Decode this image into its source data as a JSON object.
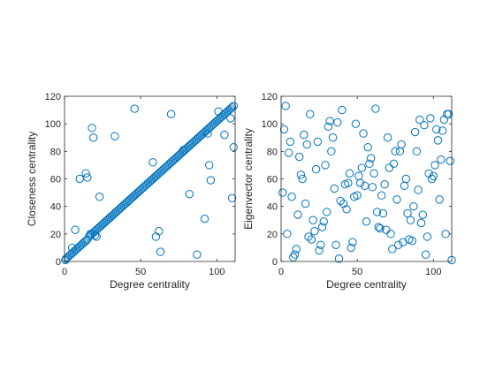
{
  "marker_color": "#0072BD",
  "axis_color": "#262626",
  "chart_data": [
    {
      "type": "scatter",
      "title": "",
      "xlabel": "Degree centrality",
      "ylabel": "Closeness centrality",
      "xlim": [
        0,
        112
      ],
      "ylim": [
        0,
        120
      ],
      "xticks": [
        0,
        50,
        100
      ],
      "yticks": [
        0,
        20,
        40,
        60,
        80,
        100,
        120
      ],
      "grid": false,
      "legend": "none",
      "series": [
        {
          "x": [
            0.5,
            1,
            2,
            3,
            4,
            5,
            6,
            7,
            8,
            9,
            10,
            11,
            12,
            13,
            14,
            15,
            16,
            17,
            18,
            19,
            20,
            21,
            22,
            23,
            24,
            25,
            26,
            27,
            28,
            29,
            30,
            31,
            32,
            33,
            34,
            35,
            36,
            37,
            38,
            39,
            40,
            41,
            42,
            43,
            44,
            45,
            46,
            47,
            48,
            49,
            50,
            51,
            52,
            53,
            54,
            55,
            56,
            57,
            58,
            59,
            60,
            61,
            62,
            63,
            64,
            65,
            66,
            67,
            68,
            69,
            70,
            71,
            72,
            73,
            74,
            75,
            76,
            77,
            78,
            79,
            80,
            81,
            82,
            83,
            84,
            85,
            86,
            87,
            88,
            89,
            90,
            91,
            92,
            93,
            94,
            95,
            96,
            97,
            98,
            99,
            100,
            101,
            102,
            103,
            104,
            105,
            106,
            107,
            108,
            109,
            110,
            111,
            5,
            7,
            10,
            14,
            15,
            17,
            18,
            19,
            20,
            21,
            23,
            33,
            46,
            58,
            60,
            62,
            63,
            70,
            78,
            82,
            87,
            92,
            94,
            95,
            96,
            101,
            105,
            109,
            110,
            111
          ],
          "y": [
            1,
            2,
            3,
            4,
            5,
            6,
            7,
            8,
            9,
            10,
            11,
            12,
            13,
            14,
            15,
            16,
            18,
            19,
            20,
            21,
            22,
            23,
            24,
            25,
            26,
            27,
            28,
            29,
            30,
            31,
            32,
            33,
            34,
            35,
            36,
            37,
            38,
            39,
            40,
            41,
            42,
            43,
            44,
            45,
            46,
            47,
            48,
            49,
            50,
            51,
            52,
            53,
            54,
            55,
            56,
            57,
            58,
            59,
            60,
            61,
            62,
            63,
            64,
            65,
            66,
            67,
            68,
            69,
            70,
            71,
            72,
            73,
            74,
            75,
            76,
            77,
            78,
            79,
            80,
            81,
            82,
            83,
            84,
            85,
            86,
            87,
            88,
            89,
            90,
            91,
            92,
            93,
            94,
            95,
            96,
            97,
            98,
            99,
            100,
            101,
            102,
            103,
            104,
            105,
            106,
            107,
            108,
            109,
            110,
            111,
            112,
            113,
            10,
            23,
            60,
            64,
            61,
            20,
            97,
            90,
            19,
            18,
            47,
            91,
            111,
            72,
            18,
            22,
            7,
            107,
            81,
            49,
            5,
            31,
            93,
            70,
            59,
            109,
            92,
            104,
            46,
            83
          ]
        }
      ]
    },
    {
      "type": "scatter",
      "title": "",
      "xlabel": "Degree centrality",
      "ylabel": "Eigenvector centrality",
      "xlim": [
        0,
        112
      ],
      "ylim": [
        0,
        120
      ],
      "xticks": [
        0,
        50,
        100
      ],
      "yticks": [
        0,
        20,
        40,
        60,
        80,
        100,
        120
      ],
      "grid": false,
      "legend": "none",
      "series": [
        {
          "x": [
            1,
            2,
            3,
            4,
            5,
            6,
            7,
            8,
            9,
            10,
            11,
            12,
            13,
            14,
            15,
            16,
            17,
            18,
            19,
            20,
            21,
            22,
            23,
            24,
            25,
            26,
            27,
            28,
            29,
            30,
            31,
            32,
            33,
            34,
            35,
            36,
            37,
            38,
            39,
            40,
            41,
            42,
            43,
            44,
            45,
            46,
            47,
            48,
            49,
            50,
            51,
            52,
            53,
            54,
            55,
            56,
            57,
            58,
            59,
            60,
            61,
            62,
            63,
            64,
            65,
            66,
            67,
            68,
            69,
            70,
            71,
            72,
            73,
            74,
            75,
            76,
            77,
            78,
            79,
            80,
            81,
            82,
            83,
            84,
            85,
            86,
            87,
            88,
            89,
            90,
            91,
            92,
            93,
            94,
            95,
            96,
            97,
            98,
            99,
            100,
            101,
            102,
            103,
            104,
            105,
            106,
            107,
            108,
            109,
            110,
            111,
            112
          ],
          "y": [
            50,
            96,
            113,
            20,
            79,
            87,
            47,
            3,
            5,
            9,
            34,
            76,
            63,
            60,
            92,
            42,
            85,
            18,
            107,
            16,
            30,
            22,
            67,
            87,
            8,
            12,
            25,
            29,
            70,
            36,
            98,
            102,
            80,
            90,
            53,
            12,
            101,
            2,
            44,
            110,
            42,
            56,
            38,
            57,
            64,
            10,
            14,
            47,
            100,
            48,
            62,
            57,
            68,
            93,
            55,
            29,
            83,
            71,
            75,
            54,
            64,
            111,
            36,
            25,
            24,
            48,
            35,
            56,
            23,
            90,
            68,
            20,
            9,
            71,
            80,
            45,
            12,
            80,
            85,
            14,
            55,
            60,
            35,
            16,
            30,
            15,
            40,
            94,
            80,
            52,
            103,
            28,
            34,
            99,
            5,
            18,
            64,
            104,
            60,
            62,
            70,
            96,
            88,
            45,
            74,
            95,
            103,
            20,
            107,
            107,
            73,
            1
          ]
        }
      ]
    }
  ]
}
